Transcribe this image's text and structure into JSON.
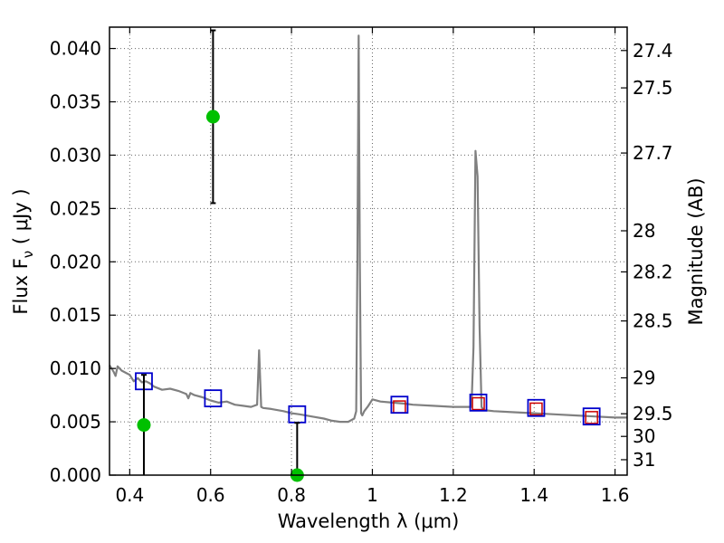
{
  "chart_data": {
    "type": "scatter",
    "xlabel": "Wavelength  λ (μm)",
    "ylabel": "Flux  F",
    "ylabel_sub": "ν",
    "ylabel_unit": "  ( μJy )",
    "y2label": "Magnitude (AB)",
    "xlim": [
      0.35,
      1.63
    ],
    "ylim": [
      0.0,
      0.042
    ],
    "grid": true,
    "x_ticks": [
      0.4,
      0.6,
      0.8,
      1.0,
      1.2,
      1.4,
      1.6
    ],
    "x_tick_labels": [
      "0.4",
      "0.6",
      "0.8",
      "1",
      "1.2",
      "1.4",
      "1.6"
    ],
    "y_ticks": [
      0.0,
      0.005,
      0.01,
      0.015,
      0.02,
      0.025,
      0.03,
      0.035,
      0.04
    ],
    "y_tick_labels": [
      "0.000",
      "0.005",
      "0.010",
      "0.015",
      "0.020",
      "0.025",
      "0.030",
      "0.035",
      "0.040"
    ],
    "mag_ticks": [
      "27.4",
      "27.5",
      "27.7",
      "28",
      "28.2",
      "28.5",
      "29",
      "29.5",
      "30",
      "31"
    ],
    "colors": {
      "spectrum": "#808080",
      "observed": "#00c000",
      "model_box": "#0000cc",
      "model_red": "#cc0000",
      "errorbar": "#000000",
      "grid": "#666666"
    },
    "spectrum": {
      "x": [
        0.35,
        0.36,
        0.365,
        0.37,
        0.38,
        0.39,
        0.4,
        0.41,
        0.42,
        0.43,
        0.44,
        0.45,
        0.46,
        0.48,
        0.5,
        0.52,
        0.54,
        0.545,
        0.55,
        0.56,
        0.58,
        0.6,
        0.62,
        0.64,
        0.66,
        0.68,
        0.7,
        0.715,
        0.72,
        0.725,
        0.73,
        0.75,
        0.78,
        0.8,
        0.82,
        0.85,
        0.88,
        0.9,
        0.92,
        0.94,
        0.955,
        0.96,
        0.963,
        0.966,
        0.969,
        0.972,
        0.975,
        0.98,
        0.99,
        1.0,
        1.02,
        1.05,
        1.08,
        1.1,
        1.15,
        1.2,
        1.245,
        1.25,
        1.255,
        1.26,
        1.265,
        1.27,
        1.275,
        1.3,
        1.35,
        1.4,
        1.45,
        1.5,
        1.55,
        1.6,
        1.63
      ],
      "y": [
        0.0103,
        0.0097,
        0.0093,
        0.0102,
        0.0098,
        0.0096,
        0.0094,
        0.0088,
        0.0091,
        0.0087,
        0.0088,
        0.0086,
        0.0083,
        0.008,
        0.0081,
        0.0079,
        0.0076,
        0.0072,
        0.0077,
        0.0075,
        0.0073,
        0.007,
        0.0068,
        0.0069,
        0.0066,
        0.0065,
        0.0064,
        0.0066,
        0.0117,
        0.0064,
        0.0063,
        0.0062,
        0.006,
        0.0058,
        0.0057,
        0.0055,
        0.0053,
        0.0051,
        0.005,
        0.005,
        0.0053,
        0.006,
        0.02,
        0.0412,
        0.02,
        0.0058,
        0.0056,
        0.006,
        0.0065,
        0.0071,
        0.0069,
        0.0068,
        0.0067,
        0.0066,
        0.0065,
        0.0064,
        0.0064,
        0.012,
        0.0304,
        0.028,
        0.014,
        0.0064,
        0.0061,
        0.006,
        0.0059,
        0.0058,
        0.0057,
        0.0056,
        0.0055,
        0.0054,
        0.0054
      ]
    },
    "model_blue": [
      {
        "x": 0.435,
        "y": 0.0088
      },
      {
        "x": 0.606,
        "y": 0.0072
      },
      {
        "x": 0.814,
        "y": 0.0057
      },
      {
        "x": 1.067,
        "y": 0.0066
      },
      {
        "x": 1.262,
        "y": 0.0068
      },
      {
        "x": 1.405,
        "y": 0.0063
      },
      {
        "x": 1.542,
        "y": 0.0055
      }
    ],
    "model_red": [
      {
        "x": 1.067,
        "y": 0.0064
      },
      {
        "x": 1.262,
        "y": 0.0067
      },
      {
        "x": 1.405,
        "y": 0.0062
      },
      {
        "x": 1.542,
        "y": 0.0054
      }
    ],
    "observed": [
      {
        "x": 0.435,
        "y": 0.0047,
        "yerr_low": 0.0047,
        "yerr_high": 0.0047
      },
      {
        "x": 0.606,
        "y": 0.0336,
        "yerr_low": 0.0081,
        "yerr_high": 0.0081
      },
      {
        "x": 0.814,
        "y": 0.0,
        "yerr_low": 0.0,
        "yerr_high": 0.0049
      }
    ]
  }
}
